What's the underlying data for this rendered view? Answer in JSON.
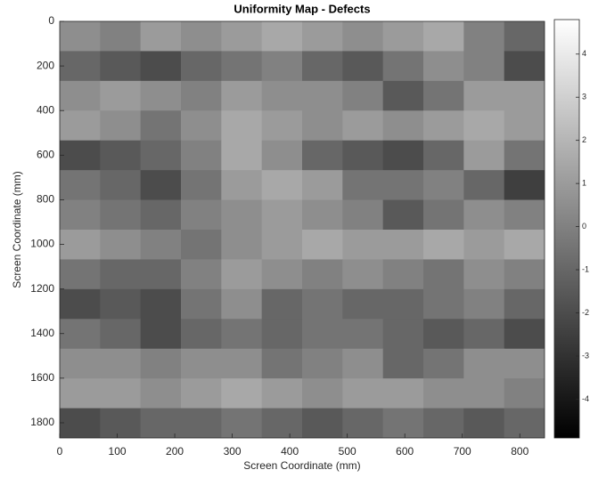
{
  "chart_data": {
    "type": "heatmap",
    "title": "Uniformity Map - Defects",
    "x_label": "Screen Coordinate (mm)",
    "y_label": "Screen Coordinate (mm)",
    "xlim": [
      0,
      843
    ],
    "ylim": [
      0,
      1868
    ],
    "y_reversed": true,
    "xticks": [
      0,
      100,
      200,
      300,
      400,
      500,
      600,
      700,
      800
    ],
    "yticks": [
      0,
      200,
      400,
      600,
      800,
      1000,
      1200,
      1400,
      1600,
      1800
    ],
    "colormap": "gray",
    "clim": [
      -4.9,
      4.8
    ],
    "colorbar_ticks": [
      -4,
      -3,
      -2,
      -1,
      0,
      1,
      2,
      3,
      4
    ],
    "z": [
      [
        0.5,
        0,
        1,
        0.5,
        1,
        1.5,
        1,
        0.5,
        1,
        1.5,
        0,
        -1
      ],
      [
        -1,
        -1.5,
        -2,
        -1,
        -0.5,
        0,
        -1,
        -1.5,
        -0.5,
        0.5,
        0,
        -2
      ],
      [
        0.5,
        1,
        0.5,
        0,
        1,
        0.5,
        0.5,
        0,
        -1.5,
        -0.5,
        1,
        1
      ],
      [
        1,
        0.5,
        -0.5,
        0.5,
        1.5,
        1,
        0.5,
        1,
        0.5,
        1,
        1.5,
        1
      ],
      [
        -2,
        -1.5,
        -1,
        0,
        1.5,
        0.5,
        -1,
        -1.5,
        -2,
        -1,
        1,
        -0.5
      ],
      [
        -0.5,
        -1,
        -2,
        -0.5,
        1,
        1.5,
        1,
        -0.5,
        -0.5,
        0,
        -1,
        -2.5
      ],
      [
        0,
        -0.5,
        -1,
        0,
        0.5,
        1,
        0.5,
        0,
        -1.5,
        -0.5,
        0.5,
        0
      ],
      [
        1,
        0.5,
        0,
        -0.5,
        0.5,
        1,
        1.5,
        1,
        1,
        1.5,
        1,
        1.5
      ],
      [
        -0.5,
        -1,
        -1,
        0,
        1,
        0.5,
        0,
        0.5,
        0,
        -0.5,
        0.5,
        0
      ],
      [
        -2,
        -1.5,
        -2,
        -0.5,
        0.5,
        -1,
        -0.5,
        -1,
        -1,
        -0.5,
        0,
        -1
      ],
      [
        -0.5,
        -1,
        -2,
        -1,
        -0.5,
        -1,
        -0.5,
        -0.5,
        -1,
        -1.5,
        -1,
        -2
      ],
      [
        0.5,
        0.5,
        0,
        0.5,
        0.5,
        -0.5,
        0,
        0.5,
        -1,
        -0.5,
        0.5,
        0.5
      ],
      [
        1,
        1,
        0.5,
        1,
        1.5,
        1,
        0.5,
        1,
        1,
        0.5,
        0.5,
        0
      ],
      [
        -2,
        -1.5,
        -1,
        -1,
        -0.5,
        -1,
        -1.5,
        -1,
        -0.5,
        -1,
        -1.5,
        -1
      ]
    ]
  }
}
